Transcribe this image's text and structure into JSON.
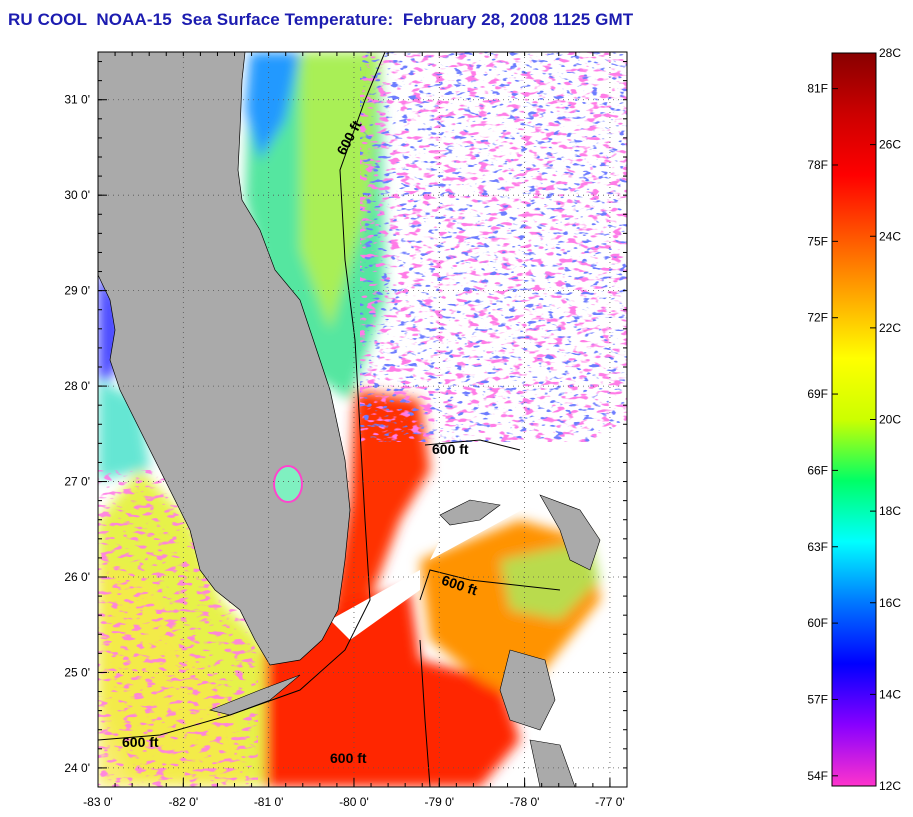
{
  "title": "RU COOL  NOAA-15  Sea Surface Temperature:  February 28, 2008 1125 GMT",
  "map": {
    "lon_range": [
      -83,
      -76.8
    ],
    "lat_range": [
      23.8,
      31.5
    ],
    "lon_ticks": [
      {
        "value": -83,
        "label": "-83 0'"
      },
      {
        "value": -82,
        "label": "-82 0'"
      },
      {
        "value": -81,
        "label": "-81 0'"
      },
      {
        "value": -80,
        "label": "-80 0'"
      },
      {
        "value": -79,
        "label": "-79 0'"
      },
      {
        "value": -78,
        "label": "-78 0'"
      },
      {
        "value": -77,
        "label": "-77 0'"
      }
    ],
    "lat_ticks": [
      {
        "value": 24,
        "label": "24 0'"
      },
      {
        "value": 25,
        "label": "25 0'"
      },
      {
        "value": 26,
        "label": "26 0'"
      },
      {
        "value": 27,
        "label": "27 0'"
      },
      {
        "value": 28,
        "label": "28 0'"
      },
      {
        "value": 29,
        "label": "29 0'"
      },
      {
        "value": 30,
        "label": "30 0'"
      },
      {
        "value": 31,
        "label": "31 0'"
      }
    ],
    "grid": "dotted",
    "contour_labels": [
      "600 ft",
      "600 ft",
      "600 ft",
      "600 ft",
      "600 ft"
    ],
    "colors": {
      "land": "#aaaaaa",
      "no_data": "#ffffff",
      "warm": "#ff2200",
      "cold": "#0033ff"
    }
  },
  "colorbar": {
    "celsius_labels": [
      {
        "value": 28,
        "label": "28C"
      },
      {
        "value": 26,
        "label": "26C"
      },
      {
        "value": 24,
        "label": "24C"
      },
      {
        "value": 22,
        "label": "22C"
      },
      {
        "value": 20,
        "label": "20C"
      },
      {
        "value": 18,
        "label": "18C"
      },
      {
        "value": 16,
        "label": "16C"
      },
      {
        "value": 14,
        "label": "14C"
      },
      {
        "value": 12,
        "label": "12C"
      }
    ],
    "fahrenheit_labels": [
      {
        "value": 81,
        "label": "81F"
      },
      {
        "value": 78,
        "label": "78F"
      },
      {
        "value": 75,
        "label": "75F"
      },
      {
        "value": 72,
        "label": "72F"
      },
      {
        "value": 69,
        "label": "69F"
      },
      {
        "value": 66,
        "label": "66F"
      },
      {
        "value": 63,
        "label": "63F"
      },
      {
        "value": 60,
        "label": "60F"
      },
      {
        "value": 57,
        "label": "57F"
      },
      {
        "value": 54,
        "label": "54F"
      }
    ],
    "stops": [
      "#ff33cc",
      "#8800ff",
      "#0000ff",
      "#0077ff",
      "#00ffff",
      "#00ff66",
      "#ccff00",
      "#ffff00",
      "#ffaa00",
      "#ff5500",
      "#ff0000",
      "#cc0000",
      "#880000"
    ]
  }
}
